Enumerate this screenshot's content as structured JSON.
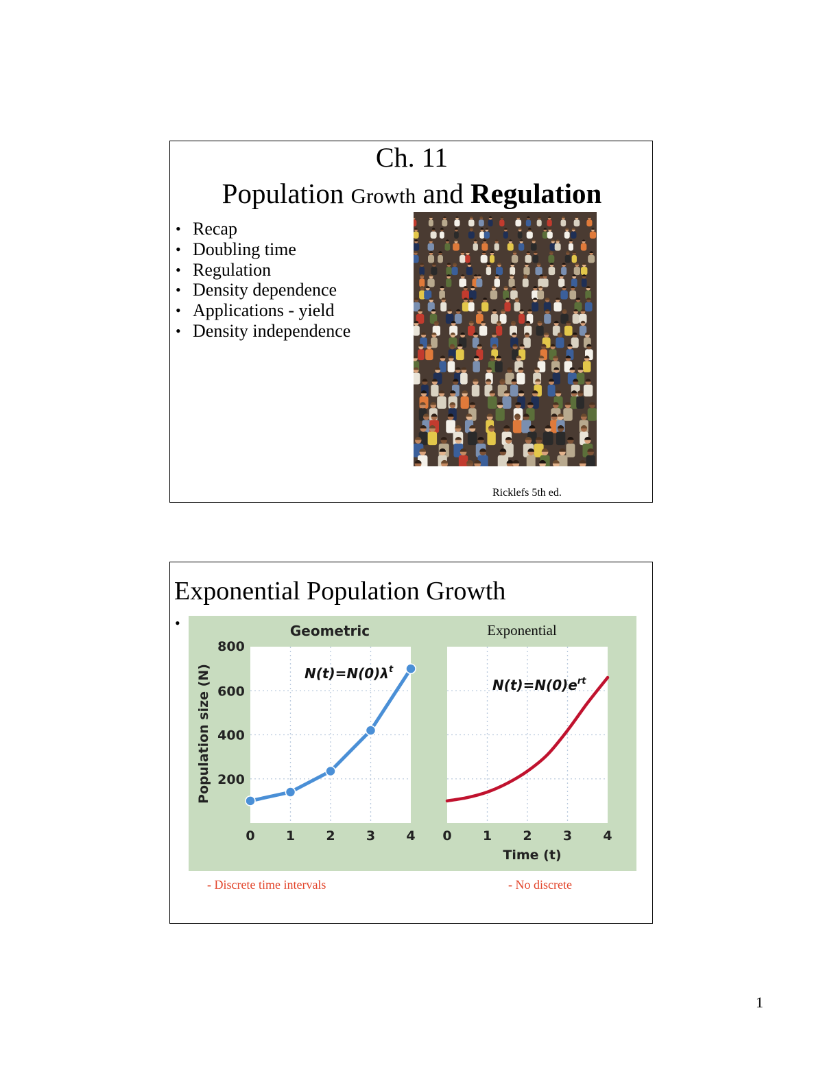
{
  "slide1": {
    "title_line1": "Ch. 11",
    "title_part1": "Population",
    "title_part2": "Growth",
    "title_part3": "and",
    "title_part4": "Regulation",
    "bullets": [
      "Recap",
      "Doubling time",
      "Regulation",
      "Density dependence",
      "Applications - yield",
      "Density independence"
    ],
    "credit": "Ricklefs 5th ed."
  },
  "slide2": {
    "title": "Exponential Population Growth",
    "bullet_char": "•",
    "note_left": "- Discrete time intervals",
    "note_right": "- No discrete"
  },
  "colors": {
    "figure_bg": "#c8dcbf",
    "geometric_line": "#4a8fd6",
    "exponential_line": "#c0122e",
    "note_text": "#e2442a"
  },
  "chart_data": [
    {
      "type": "scatter",
      "title": "Geometric",
      "equation": "N(t)=N(0)λ^t",
      "equation_main": "N(t)=N(0)λ",
      "equation_sup": "t",
      "ylabel": "Population size (N)",
      "xlabel": "",
      "x_ticks": [
        "0",
        "1",
        "2",
        "3",
        "4"
      ],
      "y_ticks": [
        "200",
        "400",
        "600",
        "800"
      ],
      "xlim": [
        0,
        4
      ],
      "ylim": [
        0,
        800
      ],
      "x": [
        0,
        1,
        2,
        3,
        4
      ],
      "y": [
        100,
        140,
        235,
        420,
        700
      ],
      "connected": true,
      "grid": true
    },
    {
      "type": "line",
      "title": "Exponential",
      "equation": "N(t)=N(0)e^rt",
      "equation_main": "N(t)=N(0)e",
      "equation_sup": "rt",
      "xlabel": "Time (t)",
      "ylabel": "",
      "x_ticks": [
        "0",
        "1",
        "2",
        "3",
        "4"
      ],
      "xlim": [
        0,
        4
      ],
      "ylim": [
        0,
        800
      ],
      "x": [
        0,
        0.5,
        1,
        1.5,
        2,
        2.5,
        3,
        3.5,
        4
      ],
      "y": [
        100,
        115,
        140,
        180,
        235,
        310,
        420,
        545,
        660
      ],
      "grid": true
    }
  ],
  "page": {
    "number": "1"
  }
}
